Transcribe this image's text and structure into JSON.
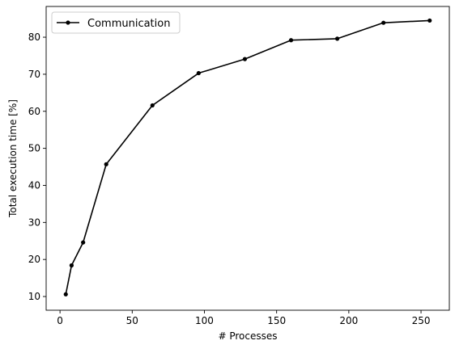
{
  "chart_data": {
    "type": "line",
    "title": "",
    "xlabel": "# Processes",
    "ylabel": "Total execution time [%]",
    "xlim": [
      -9.6,
      269.6
    ],
    "ylim": [
      6.3,
      88.3
    ],
    "xticks": [
      0,
      50,
      100,
      150,
      200,
      250
    ],
    "yticks": [
      10,
      20,
      30,
      40,
      50,
      60,
      70,
      80
    ],
    "grid": false,
    "legend_position": "top-left",
    "series": [
      {
        "name": "Communication",
        "color": "#000000",
        "marker": "circle",
        "x": [
          4,
          8,
          16,
          32,
          64,
          96,
          128,
          160,
          192,
          224,
          256
        ],
        "y": [
          10.6,
          18.4,
          24.6,
          45.7,
          61.6,
          70.3,
          74.1,
          79.2,
          79.6,
          83.9,
          84.5
        ]
      }
    ]
  }
}
